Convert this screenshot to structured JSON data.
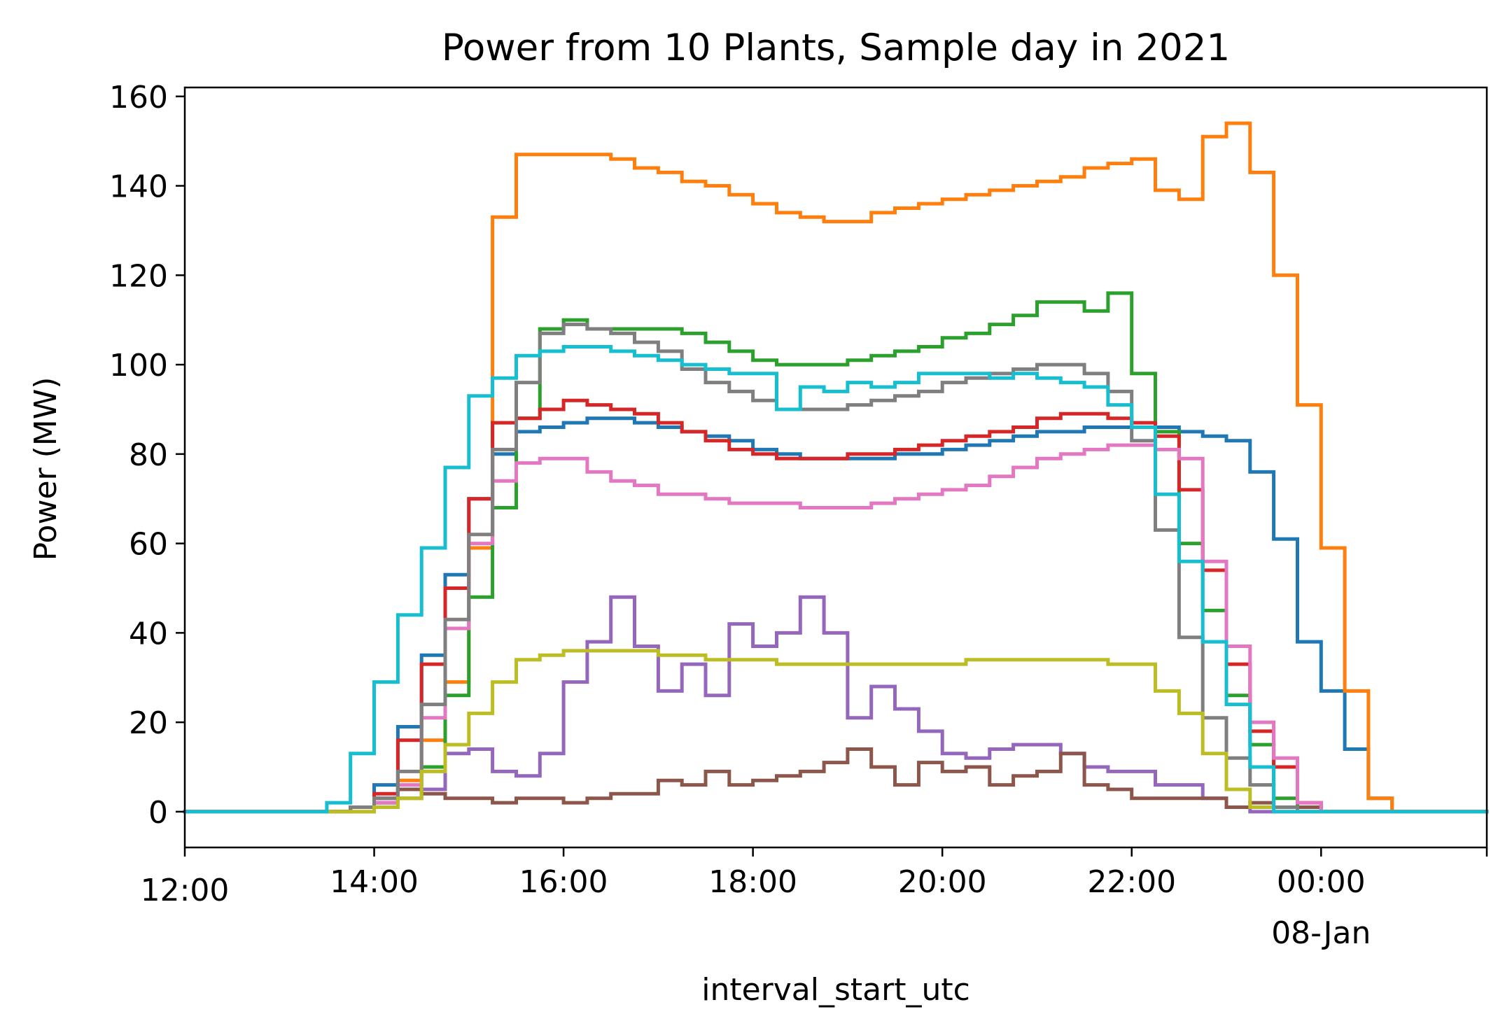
{
  "chart_data": {
    "type": "line",
    "drawstyle": "steps-post",
    "title": "Power from 10 Plants, Sample day in 2021",
    "xlabel": "interval_start_utc",
    "ylabel": "Power (MW)",
    "xlim": [
      "12:00",
      "01:45 (08-Jan)"
    ],
    "ylim": [
      -8,
      162
    ],
    "interval_minutes": 15,
    "x_start": "13:15",
    "x_ticks": [
      {
        "label": "12:00",
        "hours": 0
      },
      {
        "label": "14:00",
        "hours": 2
      },
      {
        "label": "16:00",
        "hours": 4
      },
      {
        "label": "18:00",
        "hours": 6
      },
      {
        "label": "20:00",
        "hours": 8
      },
      {
        "label": "22:00",
        "hours": 10
      },
      {
        "label": "00:00",
        "sublabel": "08-Jan",
        "hours": 12
      }
    ],
    "y_ticks": [
      0,
      20,
      40,
      60,
      80,
      100,
      120,
      140,
      160
    ],
    "grid": false,
    "legend": "none",
    "series": [
      {
        "color": "#1f77b4",
        "values": [
          0,
          0,
          1,
          6,
          19,
          35,
          53,
          70,
          80,
          85,
          86,
          87,
          88,
          88,
          87,
          86,
          85,
          84,
          83,
          81,
          80,
          79,
          79,
          79,
          79,
          80,
          80,
          81,
          82,
          83,
          84,
          85,
          85,
          86,
          86,
          86,
          86,
          85,
          84,
          83,
          76,
          61,
          38,
          27,
          14,
          3,
          0
        ]
      },
      {
        "color": "#ff7f0e",
        "values": [
          0,
          0,
          0,
          2,
          7,
          16,
          29,
          59,
          133,
          147,
          147,
          147,
          147,
          146,
          144,
          143,
          141,
          140,
          138,
          136,
          134,
          133,
          132,
          132,
          134,
          135,
          136,
          137,
          138,
          139,
          140,
          141,
          142,
          144,
          145,
          146,
          139,
          137,
          151,
          154,
          143,
          120,
          91,
          59,
          27,
          3,
          0
        ]
      },
      {
        "color": "#2ca02c",
        "values": [
          0,
          0,
          1,
          2,
          5,
          10,
          26,
          48,
          68,
          88,
          108,
          110,
          108,
          108,
          108,
          108,
          107,
          105,
          103,
          101,
          100,
          100,
          100,
          101,
          102,
          103,
          104,
          106,
          107,
          109,
          111,
          114,
          114,
          112,
          116,
          98,
          85,
          60,
          45,
          26,
          15,
          3,
          0
        ]
      },
      {
        "color": "#d62728",
        "values": [
          0,
          0,
          1,
          4,
          16,
          33,
          50,
          70,
          87,
          88,
          90,
          92,
          91,
          90,
          89,
          87,
          85,
          83,
          81,
          80,
          79,
          79,
          79,
          80,
          80,
          81,
          82,
          83,
          84,
          85,
          86,
          88,
          89,
          89,
          88,
          87,
          84,
          72,
          54,
          33,
          18,
          10,
          2,
          0
        ]
      },
      {
        "color": "#9467bd",
        "values": [
          0,
          0,
          1,
          2,
          3,
          5,
          13,
          14,
          9,
          8,
          13,
          29,
          38,
          48,
          37,
          27,
          33,
          26,
          42,
          37,
          40,
          48,
          40,
          21,
          28,
          23,
          18,
          13,
          12,
          14,
          15,
          15,
          13,
          10,
          9,
          9,
          6,
          6,
          3,
          1,
          0
        ]
      },
      {
        "color": "#8c564b",
        "values": [
          0,
          0,
          1,
          3,
          5,
          4,
          3,
          3,
          2,
          3,
          3,
          2,
          3,
          4,
          4,
          7,
          6,
          9,
          6,
          7,
          8,
          9,
          11,
          14,
          10,
          6,
          11,
          9,
          10,
          6,
          8,
          9,
          13,
          6,
          5,
          3,
          3,
          3,
          3,
          1,
          2,
          1,
          1,
          0
        ]
      },
      {
        "color": "#e377c2",
        "values": [
          0,
          0,
          1,
          2,
          6,
          21,
          41,
          60,
          74,
          78,
          79,
          79,
          76,
          74,
          73,
          71,
          71,
          70,
          69,
          69,
          69,
          68,
          68,
          68,
          69,
          70,
          71,
          72,
          73,
          75,
          77,
          79,
          80,
          81,
          82,
          82,
          81,
          79,
          56,
          37,
          20,
          12,
          2,
          0
        ]
      },
      {
        "color": "#7f7f7f",
        "values": [
          0,
          0,
          1,
          3,
          9,
          24,
          43,
          62,
          81,
          96,
          107,
          109,
          108,
          107,
          105,
          103,
          99,
          96,
          94,
          92,
          90,
          90,
          90,
          91,
          92,
          93,
          94,
          96,
          97,
          98,
          99,
          100,
          100,
          98,
          94,
          83,
          63,
          39,
          21,
          12,
          6,
          1,
          0
        ]
      },
      {
        "color": "#bcbd22",
        "values": [
          0,
          0,
          0,
          1,
          3,
          9,
          15,
          22,
          29,
          34,
          35,
          36,
          36,
          36,
          36,
          35,
          35,
          34,
          34,
          34,
          33,
          33,
          33,
          33,
          33,
          33,
          33,
          33,
          34,
          34,
          34,
          34,
          34,
          34,
          33,
          33,
          27,
          22,
          13,
          5,
          1,
          0
        ]
      },
      {
        "color": "#17becf",
        "values": [
          0,
          2,
          13,
          29,
          44,
          59,
          77,
          93,
          97,
          102,
          103,
          104,
          104,
          103,
          102,
          101,
          100,
          99,
          98,
          98,
          90,
          95,
          94,
          96,
          95,
          96,
          98,
          98,
          98,
          97,
          98,
          97,
          96,
          95,
          91,
          86,
          71,
          56,
          38,
          24,
          10,
          0
        ]
      }
    ]
  }
}
